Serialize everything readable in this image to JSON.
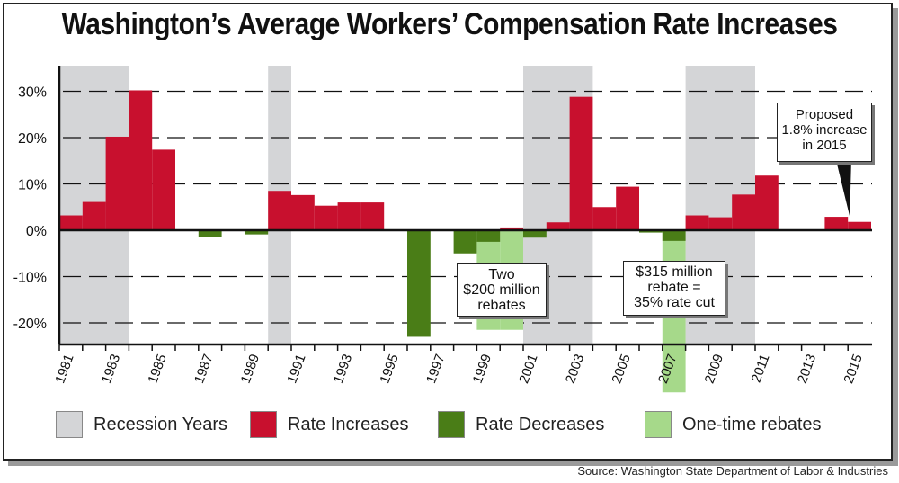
{
  "title": "Washington’s Average Workers’ Compensation Rate Increases",
  "source": "Source: Washington State Department of Labor & Industries",
  "colors": {
    "recession": "#d4d5d7",
    "increase": "#c8102e",
    "decrease": "#4a7d17",
    "rebate": "#a6d98a"
  },
  "legend": [
    {
      "label": "Recession Years",
      "color": "#d4d5d7"
    },
    {
      "label": "Rate Increases",
      "color": "#c8102e"
    },
    {
      "label": "Rate Decreases",
      "color": "#4a7d17"
    },
    {
      "label": "One-time rebates",
      "color": "#a6d98a"
    }
  ],
  "annotations": {
    "proposed": "Proposed\n1.8% increase\nin 2015",
    "two_rebates": "Two\n$200 million\nrebates",
    "rebate_315": "$315 million\nrebate =\n35% rate cut"
  },
  "chart_data": {
    "type": "bar",
    "ylim": [
      -25,
      35
    ],
    "yticks": [
      30,
      20,
      10,
      0,
      -10,
      -20
    ],
    "ytick_labels": [
      "30%",
      "20%",
      "10%",
      "0%",
      "-10%",
      "-20%"
    ],
    "x_tick_labels": [
      "1981",
      "1983",
      "1985",
      "1987",
      "1989",
      "1991",
      "1993",
      "1995",
      "1997",
      "1999",
      "2001",
      "2003",
      "2005",
      "2007",
      "2009",
      "2011",
      "2013",
      "2015"
    ],
    "gridlines": "dashed horizontal",
    "recession_periods": [
      [
        1981,
        1983
      ],
      [
        1990,
        1990
      ],
      [
        2001,
        2003
      ],
      [
        2008,
        2010
      ]
    ],
    "rate_changes": [
      {
        "year": 1981,
        "value": 3.2
      },
      {
        "year": 1982,
        "value": 6.1
      },
      {
        "year": 1983,
        "value": 20.2
      },
      {
        "year": 1984,
        "value": 30.2
      },
      {
        "year": 1985,
        "value": 17.4
      },
      {
        "year": 1986,
        "value": 0
      },
      {
        "year": 1987,
        "value": -1.5
      },
      {
        "year": 1988,
        "value": 0
      },
      {
        "year": 1989,
        "value": -0.9
      },
      {
        "year": 1990,
        "value": 8.5
      },
      {
        "year": 1991,
        "value": 7.6
      },
      {
        "year": 1992,
        "value": 5.3
      },
      {
        "year": 1993,
        "value": 6.0
      },
      {
        "year": 1994,
        "value": 6.0
      },
      {
        "year": 1995,
        "value": 0
      },
      {
        "year": 1996,
        "value": -23.0
      },
      {
        "year": 1997,
        "value": 0
      },
      {
        "year": 1998,
        "value": -5.0
      },
      {
        "year": 1999,
        "value": -2.5
      },
      {
        "year": 2000,
        "value": 0.6
      },
      {
        "year": 2001,
        "value": -1.6
      },
      {
        "year": 2002,
        "value": 1.7
      },
      {
        "year": 2003,
        "value": 28.8
      },
      {
        "year": 2004,
        "value": 5.0
      },
      {
        "year": 2005,
        "value": 9.4
      },
      {
        "year": 2006,
        "value": -0.5
      },
      {
        "year": 2007,
        "value": -2.3
      },
      {
        "year": 2008,
        "value": 3.2
      },
      {
        "year": 2009,
        "value": 2.8
      },
      {
        "year": 2010,
        "value": 7.7
      },
      {
        "year": 2011,
        "value": 11.8
      },
      {
        "year": 2012,
        "value": 0
      },
      {
        "year": 2013,
        "value": 0
      },
      {
        "year": 2014,
        "value": 2.9
      },
      {
        "year": 2015,
        "value": 1.8
      }
    ],
    "one_time_rebates": [
      {
        "year": 1999,
        "value": -21.5
      },
      {
        "year": 2000,
        "value": -21.5
      },
      {
        "year": 2007,
        "value": -35.0
      }
    ]
  }
}
